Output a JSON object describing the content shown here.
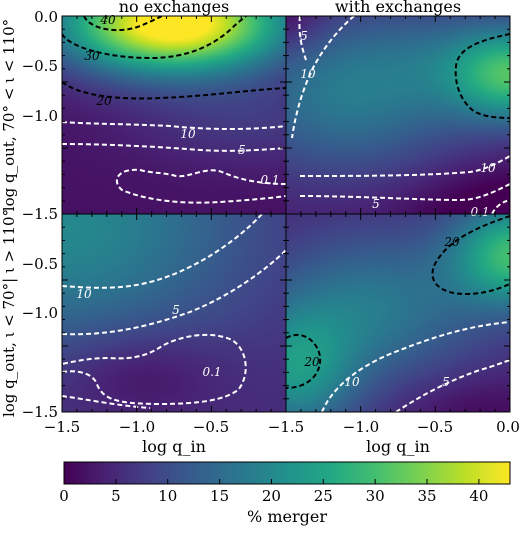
{
  "chart_data": {
    "type": "heatmap",
    "colormap": "viridis",
    "columns": [
      {
        "title": "no exchanges"
      },
      {
        "title": "with exchanges"
      }
    ],
    "rows": [
      {
        "ylabel": "log q_out, 70° < ι < 110°"
      },
      {
        "ylabel": "log q_out, ι < 70°| ι > 110°"
      }
    ],
    "xlabel": "log q_in",
    "xlim": [
      -1.5,
      0.0
    ],
    "ylim": [
      -1.5,
      0.0
    ],
    "x_ticks": [
      "−1.5",
      "−1.0",
      "−0.5",
      "0.0"
    ],
    "y_ticks": [
      "0.0",
      "−0.5",
      "−1.0",
      "−1.5"
    ],
    "colorbar": {
      "label": "% merger",
      "range": [
        0,
        43
      ],
      "ticks": [
        "0",
        "5",
        "10",
        "15",
        "20",
        "25",
        "30",
        "35",
        "40"
      ]
    },
    "panels": [
      {
        "id": "top-left",
        "max_value": 43,
        "max_at": {
          "x": -0.75,
          "y": -0.05
        },
        "contour_labels": [
          "40",
          "30",
          "20",
          "10",
          "5",
          "0.1"
        ]
      },
      {
        "id": "top-right",
        "contour_labels": [
          "5",
          "10",
          "10",
          "5",
          "0.1"
        ]
      },
      {
        "id": "bottom-left",
        "contour_labels": [
          "10",
          "5",
          "0.1"
        ]
      },
      {
        "id": "bottom-right",
        "contour_labels": [
          "20",
          "20",
          "10",
          "5"
        ]
      }
    ]
  }
}
